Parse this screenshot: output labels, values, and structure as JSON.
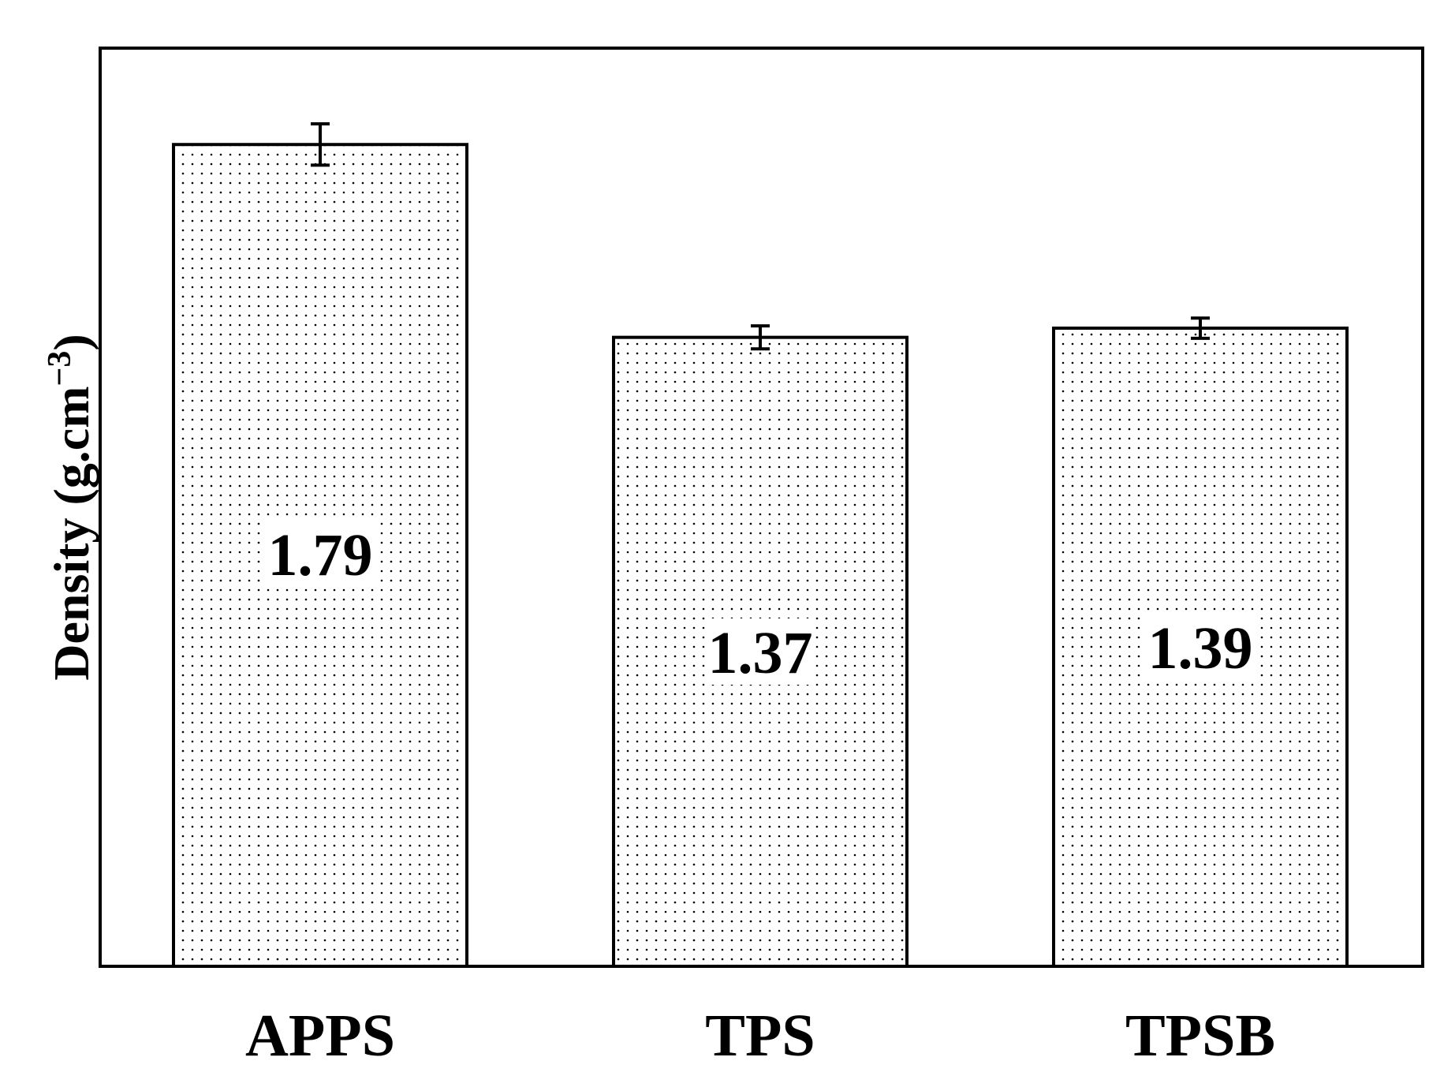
{
  "chart_data": {
    "type": "bar",
    "categories": [
      "APPS",
      "TPS",
      "TPSB"
    ],
    "values": [
      1.79,
      1.37,
      1.39
    ],
    "error": [
      0.045,
      0.025,
      0.022
    ],
    "data_labels": [
      "1.79",
      "1.37",
      "1.39"
    ],
    "title": "",
    "xlabel": "",
    "ylabel": "Density (g.cm",
    "ylabel_superscript": "−3",
    "ylabel_close": ")",
    "ylim": [
      0,
      2.0
    ],
    "y_ticks_visible": false,
    "grid": false,
    "legend": "none",
    "bar_fill": "dotted",
    "colors": {
      "bar_stroke": "#000000",
      "dot": "#000000",
      "background": "#ffffff"
    }
  }
}
